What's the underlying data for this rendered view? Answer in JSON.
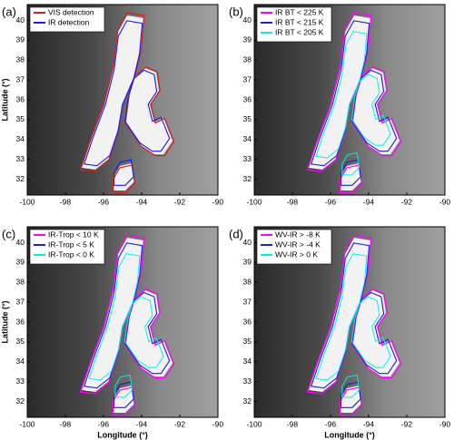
{
  "panels": [
    {
      "label": "(a)",
      "legend": [
        {
          "text": "VIS detection",
          "color": "#d42020"
        },
        {
          "text": "IR detection",
          "color": "#1c1cf0"
        }
      ]
    },
    {
      "label": "(b)",
      "legend": [
        {
          "text": "IR BT < 225 K",
          "color": "#ff00ff"
        },
        {
          "text": "IR BT < 215 K",
          "color": "#2020c8"
        },
        {
          "text": "IR BT < 205 K",
          "color": "#00f0f0"
        }
      ]
    },
    {
      "label": "(c)",
      "legend": [
        {
          "text": "IR-Trop < 10 K",
          "color": "#ff00ff"
        },
        {
          "text": "IR-Trop < 5 K",
          "color": "#2020c8"
        },
        {
          "text": "IR-Trop < 0 K",
          "color": "#00f0f0"
        }
      ]
    },
    {
      "label": "(d)",
      "legend": [
        {
          "text": "WV-IR > -8 K",
          "color": "#ff00ff"
        },
        {
          "text": "WV-IR > -4 K",
          "color": "#2020c8"
        },
        {
          "text": "WV-IR > 0 K",
          "color": "#00f0f0"
        }
      ]
    }
  ],
  "axes": {
    "xlim": [
      -100,
      -90
    ],
    "ylim": [
      31.2,
      40.8
    ],
    "xticks": [
      -100,
      -98,
      -96,
      -94,
      -92,
      -90
    ],
    "yticks": [
      32,
      33,
      34,
      35,
      36,
      37,
      38,
      39,
      40
    ],
    "xlabel": "Longitude (°)",
    "ylabel": "Latitude (°)"
  }
}
